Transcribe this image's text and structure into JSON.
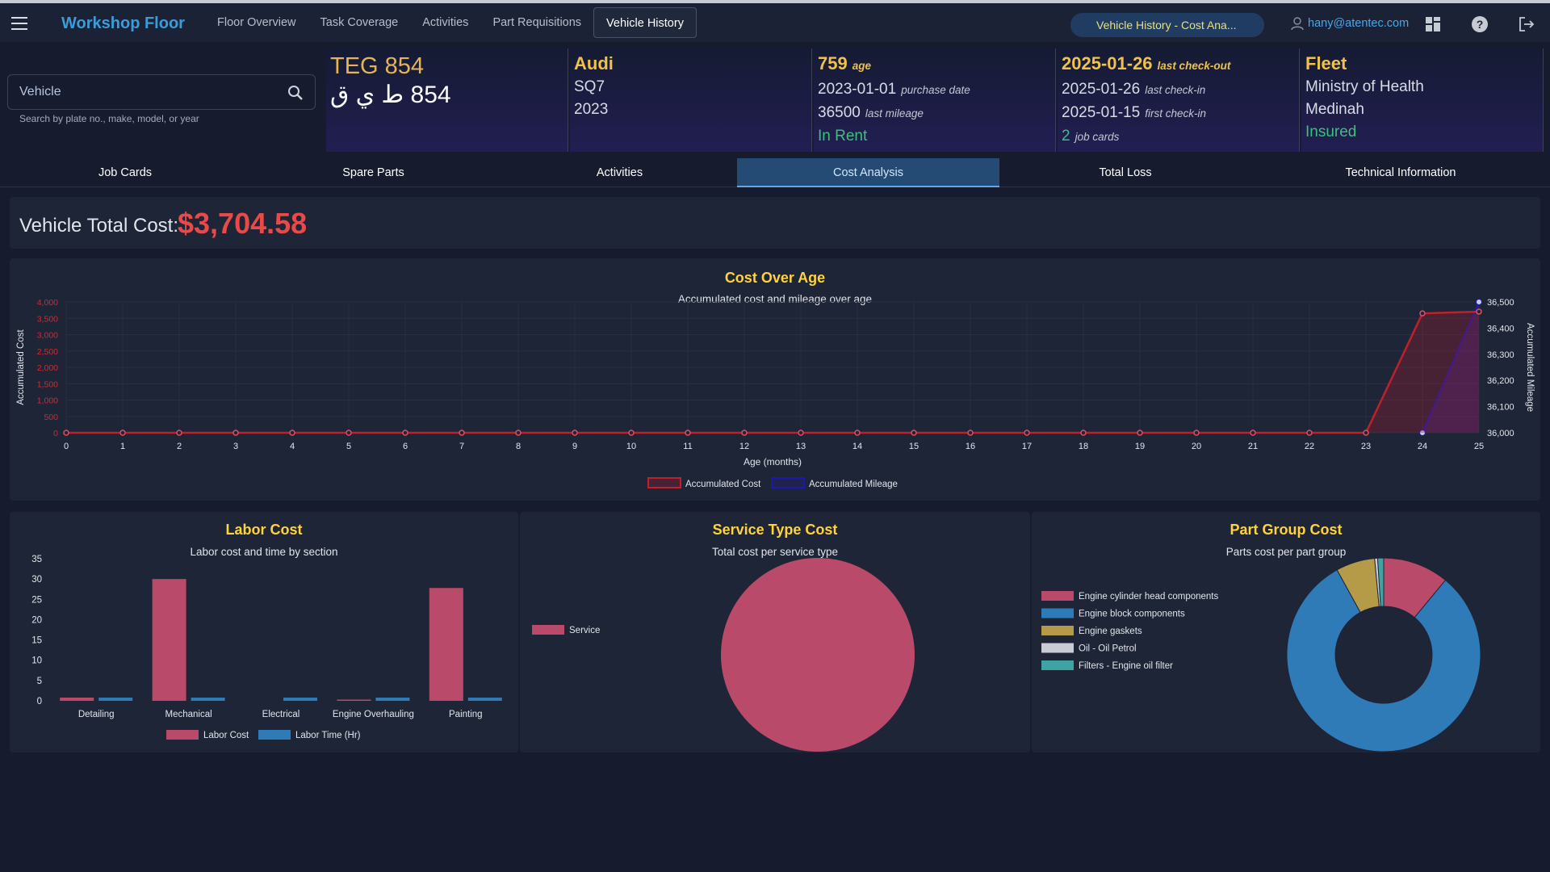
{
  "nav": {
    "brand": "Workshop Floor",
    "items": [
      {
        "label": "Floor Overview",
        "active": false
      },
      {
        "label": "Task Coverage",
        "active": false
      },
      {
        "label": "Activities",
        "active": false
      },
      {
        "label": "Part Requisitions",
        "active": false
      },
      {
        "label": "Vehicle History",
        "active": true
      }
    ],
    "context_pill": "Vehicle History - Cost Ana...",
    "user_email": "hany@atentec.com",
    "icons": [
      "dashboard-icon",
      "help-icon",
      "logout-icon"
    ]
  },
  "search": {
    "placeholder": "Vehicle",
    "hint": "Search by plate no., make, model, or year"
  },
  "vehicle": {
    "plate_en": "TEG 854",
    "plate_ar": "854 ط ي ق",
    "make": "Audi",
    "model": "SQ7",
    "year": "2023",
    "age_value": "759",
    "age_label": "age",
    "purchase_date": "2023-01-01",
    "purchase_label": "purchase date",
    "last_mileage": "36500",
    "last_mileage_label": "last mileage",
    "rent_status": "In Rent",
    "last_checkout": "2025-01-26",
    "last_checkout_label": "last check-out",
    "last_checkin": "2025-01-26",
    "last_checkin_label": "last check-in",
    "first_checkin": "2025-01-15",
    "first_checkin_label": "first check-in",
    "job_cards_count": "2",
    "job_cards_label": "job cards",
    "fleet_title": "Fleet",
    "fleet_owner": "Ministry of Health",
    "fleet_city": "Medinah",
    "insurance_status": "Insured"
  },
  "tabs": [
    {
      "label": "Job Cards",
      "active": false
    },
    {
      "label": "Spare Parts",
      "active": false
    },
    {
      "label": "Activities",
      "active": false
    },
    {
      "label": "Cost Analysis",
      "active": true
    },
    {
      "label": "Total Loss",
      "active": false
    },
    {
      "label": "Technical Information",
      "active": false
    }
  ],
  "total": {
    "label": "Vehicle Total Cost:",
    "value": "$3,704.58"
  },
  "colors": {
    "accent_yellow": "#ffd33d",
    "cost_red": "#e84a4a",
    "labor": "#b94a6a",
    "labor_time": "#2f7bb8"
  },
  "chart_data": [
    {
      "type": "line",
      "title": "Cost Over Age",
      "subtitle": "Accumulated cost and mileage over age",
      "xlabel": "Age (months)",
      "ylabel": "Accumulated Cost",
      "y2label": "Accumulated Mileage",
      "x": [
        0,
        1,
        2,
        3,
        4,
        5,
        6,
        7,
        8,
        9,
        10,
        11,
        12,
        13,
        14,
        15,
        16,
        17,
        18,
        19,
        20,
        21,
        22,
        23,
        24,
        25
      ],
      "ylim": [
        0,
        4000
      ],
      "yticks": [
        "0",
        "500",
        "1,000",
        "1,500",
        "2,000",
        "2,500",
        "3,000",
        "3,500",
        "4,000"
      ],
      "y2lim": [
        36000,
        36500
      ],
      "y2ticks": [
        "36,000",
        "36,100",
        "36,200",
        "36,300",
        "36,400",
        "36,500"
      ],
      "legend_position": "bottom",
      "series": [
        {
          "name": "Accumulated Cost",
          "axis": "left",
          "color": "#c0202a",
          "values": [
            0,
            0,
            0,
            0,
            0,
            0,
            0,
            0,
            0,
            0,
            0,
            0,
            0,
            0,
            0,
            0,
            0,
            0,
            0,
            0,
            0,
            0,
            0,
            0,
            3650,
            3705
          ]
        },
        {
          "name": "Accumulated Mileage",
          "axis": "right",
          "color": "#1a1ab0",
          "points": [
            [
              24,
              36000
            ],
            [
              25,
              36500
            ]
          ]
        }
      ]
    },
    {
      "type": "bar",
      "title": "Labor Cost",
      "subtitle": "Labor cost and time by section",
      "categories": [
        "Detailing",
        "Mechanical",
        "Electrical",
        "Engine Overhauling",
        "Painting"
      ],
      "ylim": [
        0,
        35
      ],
      "yticks": [
        "0",
        "5",
        "10",
        "15",
        "20",
        "25",
        "30",
        "35"
      ],
      "legend_position": "bottom",
      "series": [
        {
          "name": "Labor Cost",
          "color": "#b94a6a",
          "values": [
            0.8,
            30,
            0,
            0.3,
            27.8
          ]
        },
        {
          "name": "Labor Time (Hr)",
          "color": "#2f7bb8",
          "values": [
            0.8,
            0.8,
            0.8,
            0.8,
            0.8
          ]
        }
      ]
    },
    {
      "type": "pie",
      "title": "Service Type Cost",
      "subtitle": "Total cost per service type",
      "legend_position": "left",
      "slices": [
        {
          "name": "Service",
          "value": 100,
          "color": "#b94a6a"
        }
      ]
    },
    {
      "type": "pie",
      "title": "Part Group Cost",
      "subtitle": "Parts cost per part group",
      "donut": true,
      "legend_position": "left",
      "slices": [
        {
          "name": "Engine cylinder head components",
          "value": 11,
          "color": "#b94a6a"
        },
        {
          "name": "Engine block components",
          "value": 81,
          "color": "#2f7bb8"
        },
        {
          "name": "Engine gaskets",
          "value": 6.5,
          "color": "#b59a48"
        },
        {
          "name": "Oil - Oil Petrol",
          "value": 0.5,
          "color": "#c9ccd2"
        },
        {
          "name": "Filters - Engine oil filter",
          "value": 1,
          "color": "#3fa3a3"
        }
      ]
    }
  ]
}
